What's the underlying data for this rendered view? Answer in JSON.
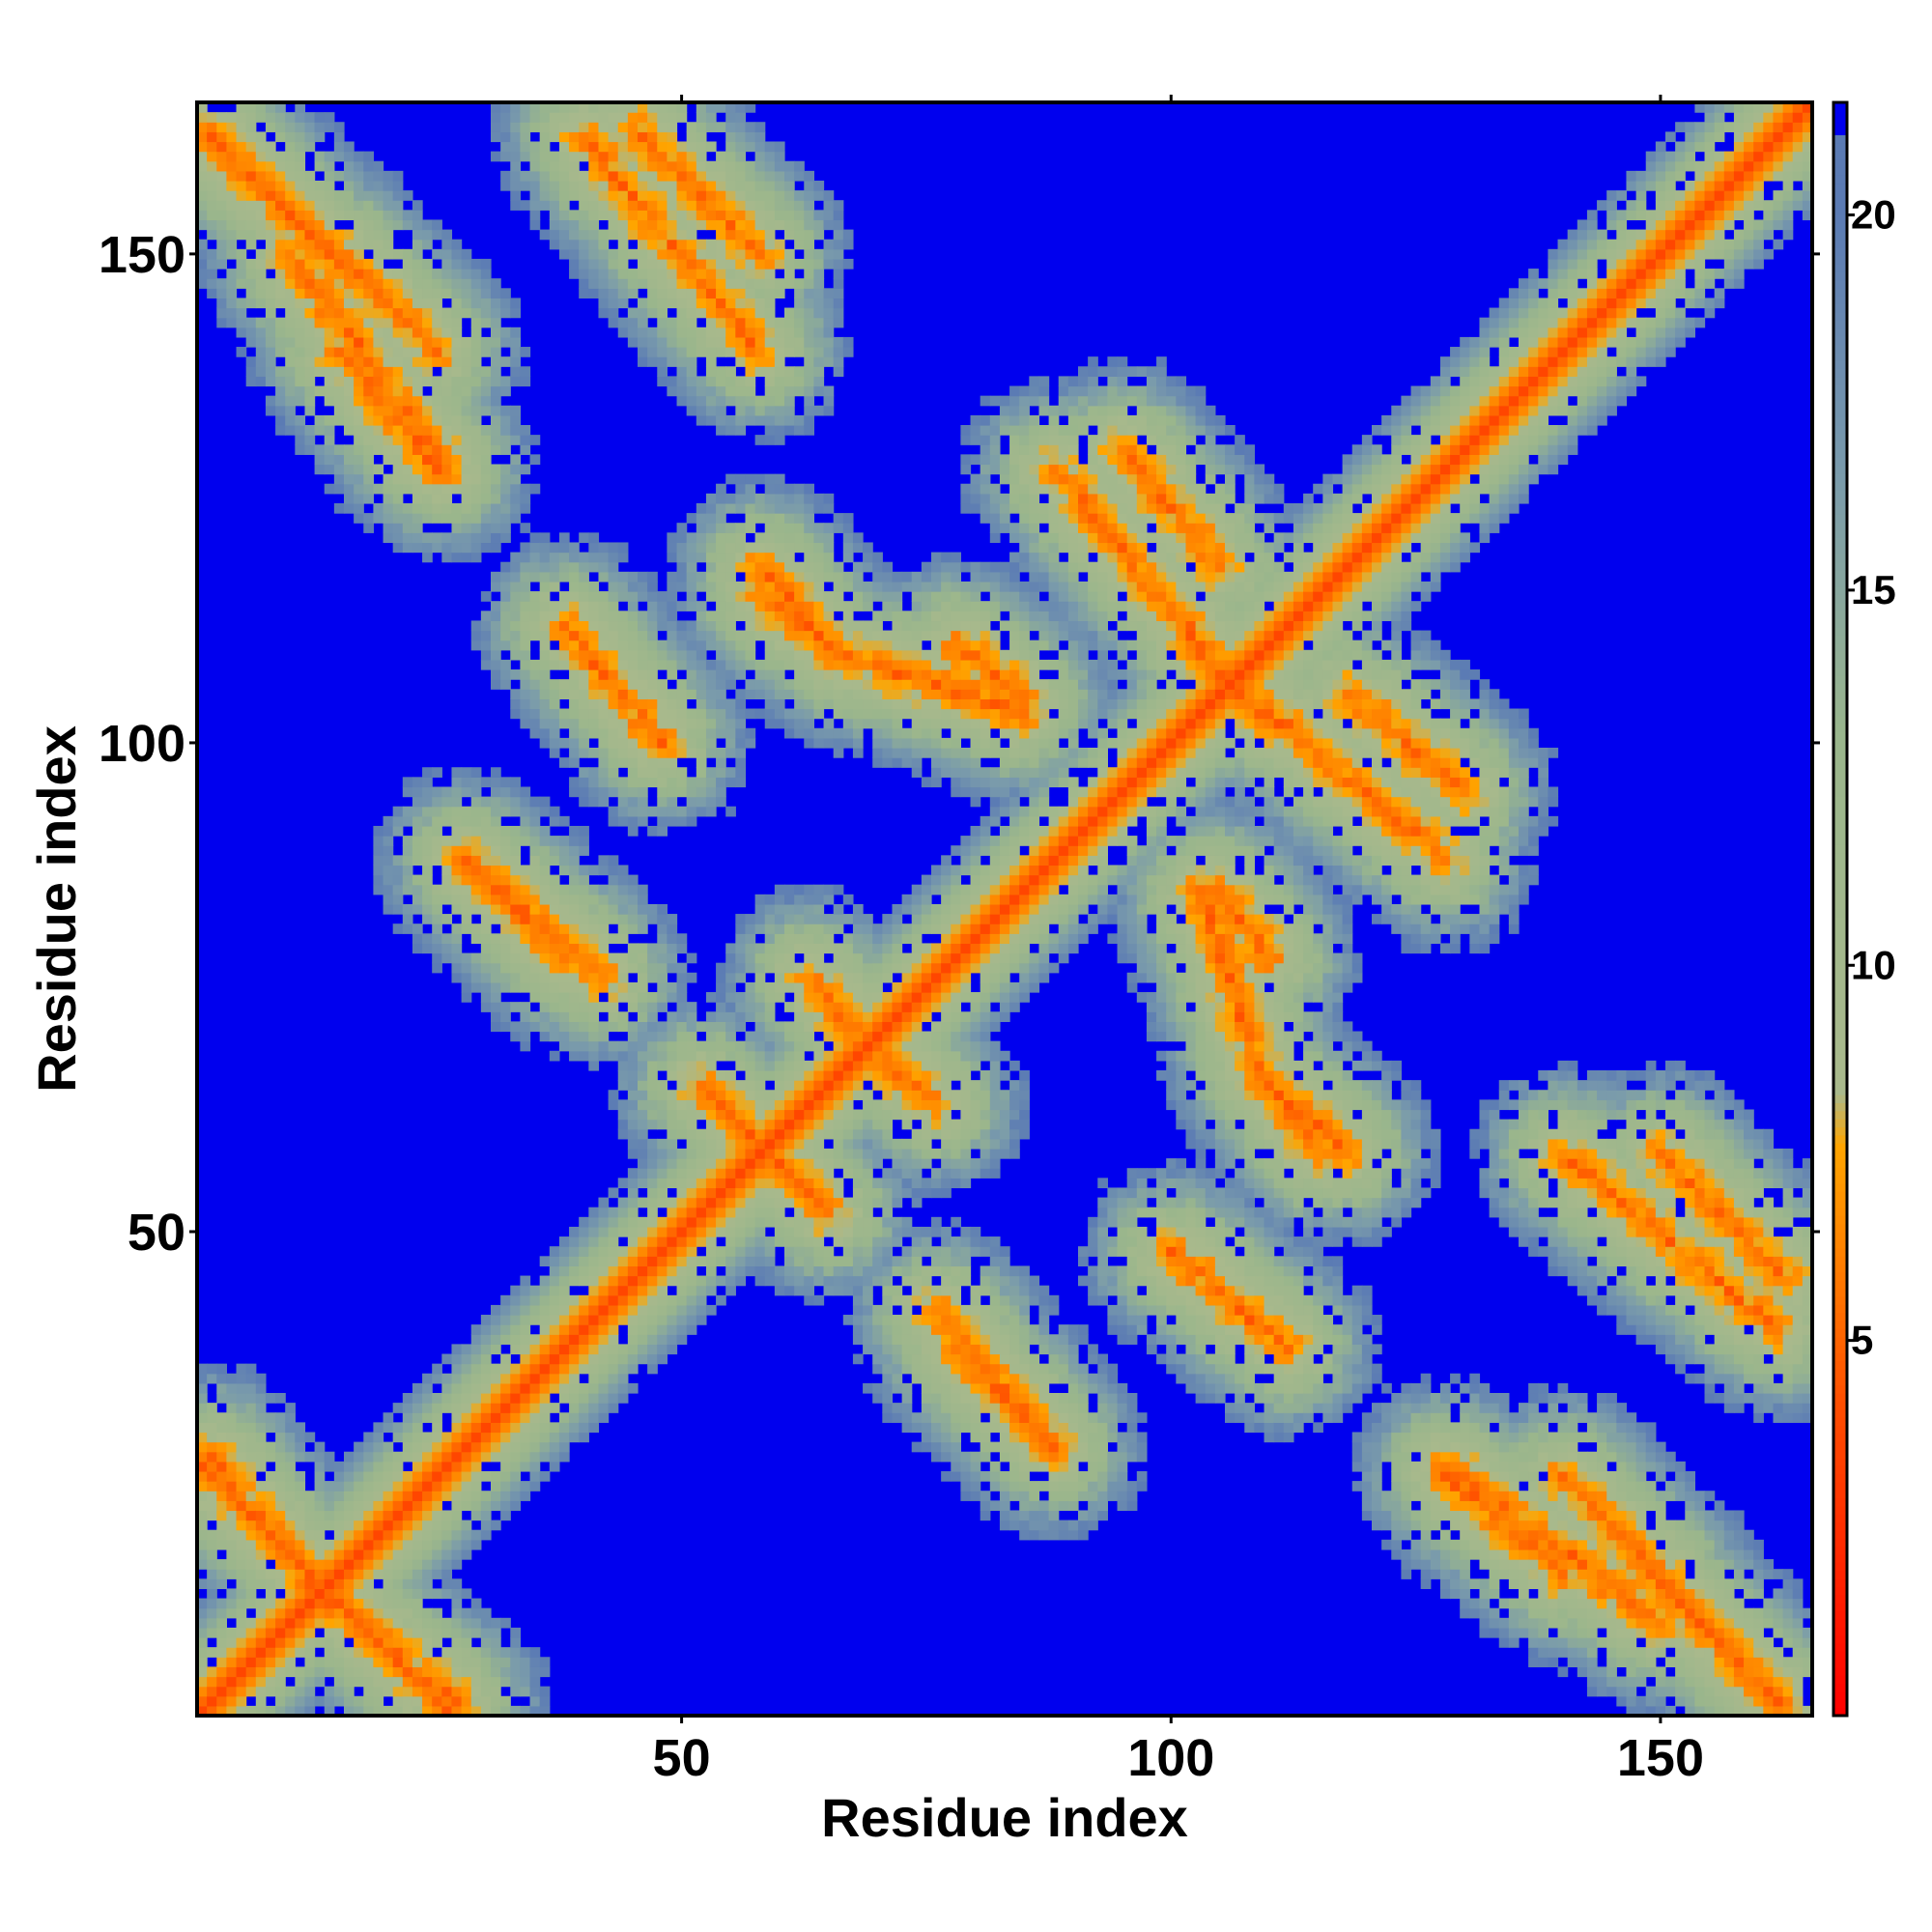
{
  "chart_data": {
    "type": "heatmap",
    "title": "",
    "xlabel": "Residue index",
    "ylabel": "Residue index",
    "n_residues": 165,
    "xlim": [
      1,
      165
    ],
    "ylim": [
      1,
      165
    ],
    "x_ticks": [
      50,
      100,
      150
    ],
    "y_ticks": [
      50,
      100,
      150
    ],
    "colorbar": {
      "range": [
        0,
        21.5
      ],
      "ticks": [
        5,
        10,
        15,
        20
      ],
      "colors": [
        {
          "value": 0,
          "color": "#ff0000"
        },
        {
          "value": 4,
          "color": "#ff4a00"
        },
        {
          "value": 7.6,
          "color": "#ffa500"
        },
        {
          "value": 8.3,
          "color": "#a9b98c"
        },
        {
          "value": 13,
          "color": "#9ab68c"
        },
        {
          "value": 16.5,
          "color": "#7a9bab"
        },
        {
          "value": 20,
          "color": "#5b7bb4"
        },
        {
          "value": 21.5,
          "color": "#0000ee"
        }
      ]
    },
    "cutoff_color": "#0000ee",
    "cutoff_value": 20,
    "contact_segments": [
      {
        "i": [
          1,
          165
        ],
        "j": [
          1,
          165
        ],
        "kind": "main diagonal",
        "min_distance": 3.8
      },
      {
        "i": [
          2,
          25
        ],
        "j": [
          162,
          140
        ],
        "kind": "antiparallel"
      },
      {
        "i": [
          15,
          25
        ],
        "j": [
          140,
          128
        ],
        "kind": "antiparallel"
      },
      {
        "i": [
          45,
          58
        ],
        "j": [
          163,
          150
        ],
        "kind": "antiparallel"
      },
      {
        "i": [
          58,
          68
        ],
        "j": [
          115,
          108
        ],
        "kind": "antiparallel"
      },
      {
        "i": [
          70,
          85
        ],
        "j": [
          108,
          103
        ],
        "kind": "antiparallel"
      },
      {
        "i": [
          95,
          105
        ],
        "j": [
          130,
          118
        ],
        "kind": "antiparallel"
      },
      {
        "i": [
          1,
          15
        ],
        "j": [
          26,
          12
        ],
        "kind": "antiparallel"
      },
      {
        "i": [
          12,
          27
        ],
        "j": [
          14,
          2
        ],
        "kind": "antiparallel"
      },
      {
        "i": [
          55,
          65
        ],
        "j": [
          62,
          52
        ],
        "kind": "antiparallel"
      },
      {
        "i": [
          63,
          68
        ],
        "j": [
          76,
          70
        ],
        "kind": "antiparallel"
      },
      {
        "i": [
          102,
          128
        ],
        "j": [
          110,
          88
        ],
        "kind": "antiparallel"
      },
      {
        "i": [
          110,
          118
        ],
        "j": [
          65,
          58
        ],
        "kind": "antiparallel"
      },
      {
        "i": [
          105,
          110
        ],
        "j": [
          85,
          78
        ],
        "kind": "antiparallel"
      },
      {
        "i": [
          128,
          150
        ],
        "j": [
          26,
          10
        ],
        "kind": "antiparallel"
      },
      {
        "i": [
          148,
          163
        ],
        "j": [
          16,
          1
        ],
        "kind": "antiparallel"
      },
      {
        "i": [
          140,
          162
        ],
        "j": [
          58,
          40
        ],
        "kind": "antiparallel"
      },
      {
        "i": [
          78,
          88
        ],
        "j": [
          38,
          28
        ],
        "kind": "antiparallel"
      },
      {
        "i": [
          28,
          42
        ],
        "j": [
          88,
          76
        ],
        "kind": "antiparallel"
      },
      {
        "i": [
          38,
          48
        ],
        "j": [
          112,
          100
        ],
        "kind": "antiparallel"
      }
    ]
  }
}
